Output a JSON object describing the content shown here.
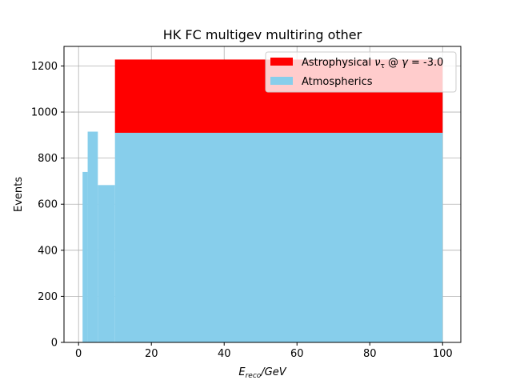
{
  "chart_data": {
    "type": "bar",
    "title": "HK FC multigev multiring other",
    "xlabel": {
      "main": "E",
      "sub": "reco",
      "rest": "/GeV"
    },
    "ylabel": "Events",
    "xlim": [
      -4,
      105
    ],
    "ylim": [
      0,
      1285
    ],
    "x_ticks": [
      "0",
      "20",
      "40",
      "60",
      "80",
      "100"
    ],
    "x_tick_values": [
      0,
      20,
      40,
      60,
      80,
      100
    ],
    "y_ticks": [
      "0",
      "200",
      "400",
      "600",
      "800",
      "1000",
      "1200"
    ],
    "y_tick_values": [
      0,
      200,
      400,
      600,
      800,
      1000,
      1200
    ],
    "grid": true,
    "legend_position": "upper right",
    "series": [
      {
        "name": "Atmospherics",
        "color": "#87ceeb",
        "bins": [
          {
            "x0": 1.1,
            "x1": 2.5,
            "value": 740
          },
          {
            "x0": 2.5,
            "x1": 5.3,
            "value": 915
          },
          {
            "x0": 5.3,
            "x1": 10.0,
            "value": 683
          },
          {
            "x0": 10.0,
            "x1": 100.0,
            "value": 910
          }
        ]
      },
      {
        "name": "Astrophysical ν_τ @ γ = -3.0",
        "legend_label": {
          "pre": "Astrophysical ",
          "nu": "ν",
          "sub": "τ",
          "post": " @ ",
          "gamma": "γ",
          "eq": " = -3.0"
        },
        "color": "#ff0000",
        "stacked_on": "Atmospherics",
        "bins": [
          {
            "x0": 1.1,
            "x1": 2.5,
            "value": 0
          },
          {
            "x0": 2.5,
            "x1": 5.3,
            "value": 0
          },
          {
            "x0": 5.3,
            "x1": 10.0,
            "value": 0
          },
          {
            "x0": 10.0,
            "x1": 100.0,
            "value": 318
          }
        ]
      }
    ]
  }
}
